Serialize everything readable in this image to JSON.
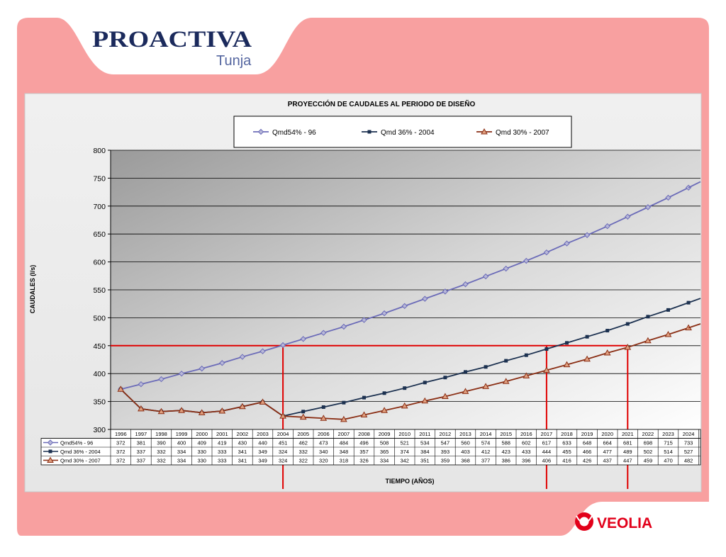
{
  "slide": {
    "brand": "PROACTIVA",
    "city": "Tunja",
    "footer_logo": "VEOLIA",
    "colors": {
      "frame": "#f8a0a0",
      "brand_navy": "#1b2a5c",
      "veolia_red": "#e2001a",
      "marker_line": "#e00000"
    }
  },
  "chart_data": {
    "type": "line",
    "title": "PROYECCIÓN DE CAUDALES AL PERIODO DE DISEÑO",
    "xlabel": "TIEMPO (AÑOS)",
    "ylabel": "CAUDALES (l/s)",
    "ylim": [
      300,
      800
    ],
    "yticks": [
      300,
      350,
      400,
      450,
      500,
      550,
      600,
      650,
      700,
      750,
      800
    ],
    "grid": true,
    "legend": "top-center",
    "categories": [
      "1996",
      "1997",
      "1998",
      "1999",
      "2000",
      "2001",
      "2002",
      "2003",
      "2004",
      "2005",
      "2006",
      "2007",
      "2008",
      "2009",
      "2010",
      "2011",
      "2012",
      "2013",
      "2014",
      "2015",
      "2016",
      "2017",
      "2018",
      "2019",
      "2020",
      "2021",
      "2022",
      "2023",
      "2024"
    ],
    "series": [
      {
        "name": "Qmd54% - 96",
        "color": "#6b6bb8",
        "marker": "diamond",
        "values": [
          372,
          381,
          390,
          400,
          409,
          419,
          430,
          440,
          451,
          462,
          473,
          484,
          496,
          508,
          521,
          534,
          547,
          560,
          574,
          588,
          602,
          617,
          633,
          648,
          664,
          681,
          698,
          715,
          733
        ]
      },
      {
        "name": "Qmd 36% - 2004",
        "color": "#1c3150",
        "marker": "square",
        "values": [
          372,
          337,
          332,
          334,
          330,
          333,
          341,
          349,
          324,
          332,
          340,
          348,
          357,
          365,
          374,
          384,
          393,
          403,
          412,
          423,
          433,
          444,
          455,
          466,
          477,
          489,
          502,
          514,
          527
        ]
      },
      {
        "name": "Qmd 30% - 2007",
        "color": "#8a2e14",
        "marker": "triangle",
        "values": [
          372,
          337,
          332,
          334,
          330,
          333,
          341,
          349,
          324,
          322,
          320,
          318,
          326,
          334,
          342,
          351,
          359,
          368,
          377,
          386,
          396,
          406,
          416,
          426,
          437,
          447,
          459,
          470,
          482
        ]
      }
    ],
    "reference_lines": {
      "level": 450,
      "years": [
        "2004",
        "2017",
        "2021"
      ]
    }
  }
}
